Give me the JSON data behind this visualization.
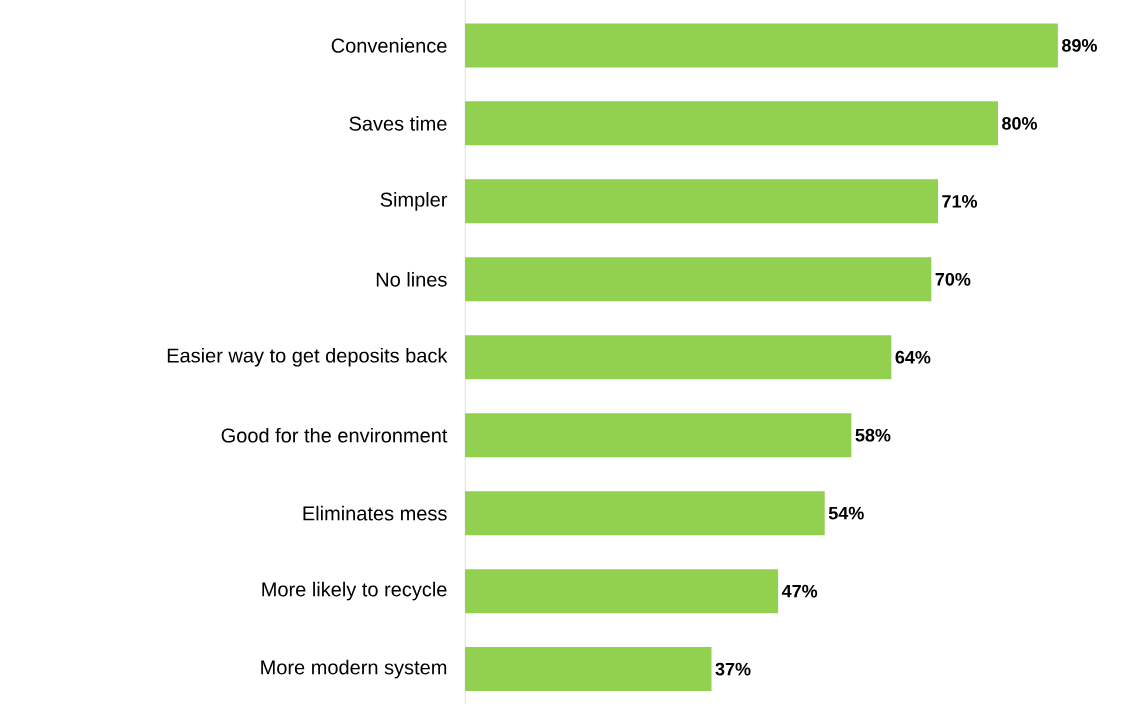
{
  "chart_data": {
    "type": "bar",
    "orientation": "horizontal",
    "color": "#92d050",
    "categories": [
      "Convenience",
      "Saves time",
      "Simpler",
      "No lines",
      "Easier way to get deposits back",
      "Good for the environment",
      "Eliminates mess",
      "More likely to recycle",
      "More modern system"
    ],
    "values": [
      89,
      80,
      71,
      70,
      64,
      58,
      54,
      47,
      37
    ],
    "value_labels": [
      "89%",
      "80%",
      "71%",
      "70%",
      "64%",
      "58%",
      "54%",
      "47%",
      "37%"
    ]
  }
}
